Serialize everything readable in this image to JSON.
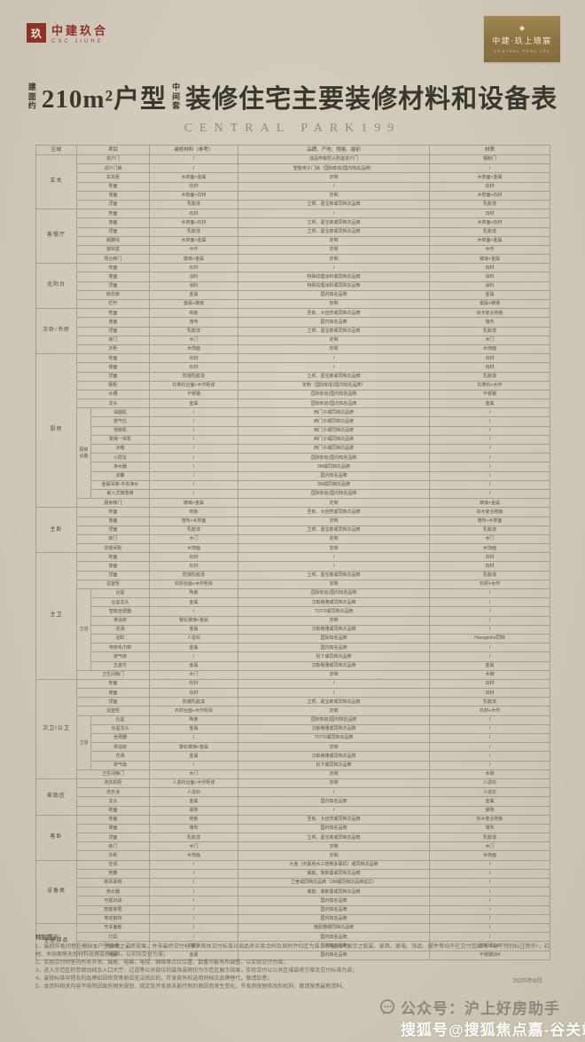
{
  "page": {
    "brand_left": {
      "cn": "中建玖合",
      "en": "CSC JIUHE",
      "seal": "玖"
    },
    "brand_right": {
      "mark": "◆",
      "cn": "中建·玖上琅宸",
      "en": "CENTRAL PARK 199"
    },
    "title": {
      "prefix_small": "建面约",
      "main_left": "210m²户型",
      "mid_small": "中间套",
      "main_right": "装修住宅主要装修材料和设备表"
    },
    "subtitle": "CENTRAL PARK199",
    "date": "2025年8月",
    "watermark_gray": "公众号：沪上好房助手",
    "watermark_white": "搜狐号@搜狐焦点嘉-谷关站"
  },
  "table": {
    "headers": [
      "区域",
      "项目",
      "装修材料（参考）",
      "品牌、产地、规格、级别",
      "材质"
    ],
    "sections": [
      {
        "area": "玄关",
        "rows": [
          {
            "item": "进户门",
            "material": "/",
            "brand": "成品甲级防火防盗进户门",
            "texture": "钢制门"
          },
          {
            "item": "进户门锁",
            "material": "/",
            "brand": "智能电子门锁（国际知名/国内知名品牌）",
            "texture": "/"
          },
          {
            "item": "玄关柜",
            "material": "木饰面+金属",
            "brand": "定制",
            "texture": "木饰面+金属"
          },
          {
            "item": "地面",
            "material": "石材",
            "brand": "/",
            "texture": "石材"
          },
          {
            "item": "墙面",
            "material": "木饰面+石材",
            "brand": "定制",
            "texture": "木饰面+石材"
          },
          {
            "item": "顶面",
            "material": "乳胶漆",
            "brand": "立邦、嘉宝莉或同档次品牌",
            "texture": "乳胶漆"
          }
        ]
      },
      {
        "area": "客餐厅",
        "rows": [
          {
            "item": "地面",
            "material": "石材",
            "brand": "/",
            "texture": "石材"
          },
          {
            "item": "墙面",
            "material": "木饰面+石材",
            "brand": "立邦、嘉宝莉或同档次品牌",
            "texture": "木饰面+石材"
          },
          {
            "item": "顶面",
            "material": "乳胶漆",
            "brand": "立邦、嘉宝莉或同档次品牌",
            "texture": "乳胶漆"
          },
          {
            "item": "踢脚线",
            "material": "木饰面+金属",
            "brand": "定制",
            "texture": "木饰面+金属"
          },
          {
            "item": "窗帘盒",
            "material": "木作",
            "brand": "定制",
            "texture": "木作"
          },
          {
            "item": "阳台移门",
            "material": "玻璃+金属",
            "brand": "定制",
            "texture": "玻璃+金属"
          }
        ]
      },
      {
        "area": "北阳台",
        "rows": [
          {
            "item": "地面",
            "material": "石材",
            "brand": "/",
            "texture": "石材"
          },
          {
            "item": "墙面",
            "material": "涂料",
            "brand": "特殊纹理涂料或同档次品牌",
            "texture": "涂料"
          },
          {
            "item": "顶面",
            "material": "涂料",
            "brand": "特殊纹理涂料或同档次品牌",
            "texture": "涂料"
          },
          {
            "item": "晾衣架",
            "material": "金属",
            "brand": "国内知名品牌",
            "texture": "金属"
          },
          {
            "item": "栏杆",
            "material": "金属+玻璃",
            "brand": "定制",
            "texture": "金属+玻璃"
          }
        ]
      },
      {
        "area": "次卧/书房",
        "rows": [
          {
            "item": "地面",
            "material": "地板",
            "brand": "圣象、大自然或同档次品牌",
            "texture": "实木复合地板"
          },
          {
            "item": "墙面",
            "material": "墙布",
            "brand": "国内知名品牌",
            "texture": "墙布"
          },
          {
            "item": "顶面",
            "material": "乳胶漆",
            "brand": "立邦、嘉宝莉或同档次品牌",
            "texture": "乳胶漆"
          },
          {
            "item": "房门",
            "material": "木门",
            "brand": "定制",
            "texture": "木门"
          },
          {
            "item": "衣柜",
            "material": "木饰面",
            "brand": "定制",
            "texture": "木饰面"
          }
        ]
      },
      {
        "area": "厨房",
        "rows": [
          {
            "item": "地面",
            "material": "石材",
            "brand": "/",
            "texture": "石材"
          },
          {
            "item": "墙面",
            "material": "石材",
            "brand": "/",
            "texture": "石材"
          },
          {
            "item": "顶面",
            "material": "防潮乳胶漆",
            "brand": "立邦、嘉宝莉或同档次品牌",
            "texture": "乳胶漆"
          },
          {
            "item": "橱柜",
            "material": "石英石台面+木作柜体",
            "brand": "定制（国际知名/国内知名品牌）",
            "texture": "石英石+木作"
          },
          {
            "item": "水槽",
            "material": "不锈钢",
            "brand": "国际知名/国内知名品牌",
            "texture": "不锈钢"
          },
          {
            "item": "龙头",
            "material": "金属",
            "brand": "国际知名/国内知名品牌",
            "texture": "金属"
          },
          {
            "group": "厨房设备",
            "item": "油烟机",
            "material": "/",
            "brand": "西门子或同档次品牌",
            "texture": "/"
          },
          {
            "group": "厨房设备",
            "item": "燃气灶",
            "material": "/",
            "brand": "西门子或同档次品牌",
            "texture": "/"
          },
          {
            "group": "厨房设备",
            "item": "洗碗机",
            "material": "/",
            "brand": "西门子或同档次品牌",
            "texture": "/"
          },
          {
            "group": "厨房设备",
            "item": "蒸烤一体机",
            "material": "/",
            "brand": "西门子或同档次品牌",
            "texture": "/"
          },
          {
            "group": "厨房设备",
            "item": "冰箱",
            "material": "/",
            "brand": "西门子或同档次品牌",
            "texture": "/"
          },
          {
            "group": "厨房设备",
            "item": "小厨宝",
            "material": "/",
            "brand": "国际知名/国内知名品牌",
            "texture": "/"
          },
          {
            "group": "厨房设备",
            "item": "净水器",
            "material": "/",
            "brand": "3M或同档次品牌",
            "texture": "/"
          },
          {
            "group": "厨房设备",
            "item": "凉霸",
            "material": "/",
            "brand": "国内知名品牌",
            "texture": "/"
          },
          {
            "group": "厨房设备",
            "item": "金属吊架·中央净水",
            "material": "/",
            "brand": "3M或同档次品牌",
            "texture": "/"
          },
          {
            "group": "厨房设备",
            "item": "嵌入式微蒸烤",
            "material": "/",
            "brand": "国际知名/国内知名品牌",
            "texture": "/"
          },
          {
            "item": "厨房移门",
            "material": "玻璃+金属",
            "brand": "定制",
            "texture": "玻璃+金属"
          }
        ]
      },
      {
        "area": "主卧",
        "rows": [
          {
            "item": "地面",
            "material": "地板",
            "brand": "圣象、大自然或同档次品牌",
            "texture": "实木复合地板"
          },
          {
            "item": "墙面",
            "material": "墙布+木饰面",
            "brand": "定制",
            "texture": "墙布+木饰面"
          },
          {
            "item": "顶面",
            "material": "乳胶漆",
            "brand": "立邦、嘉宝莉或同档次品牌",
            "texture": "乳胶漆"
          },
          {
            "item": "房门",
            "material": "木门",
            "brand": "定制",
            "texture": "木门"
          },
          {
            "item": "衣帽间柜",
            "material": "木饰面",
            "brand": "定制",
            "texture": "木饰面"
          }
        ]
      },
      {
        "area": "主卫",
        "rows": [
          {
            "item": "地面",
            "material": "石材",
            "brand": "/",
            "texture": "石材"
          },
          {
            "item": "墙面",
            "material": "石材",
            "brand": "/",
            "texture": "石材"
          },
          {
            "item": "顶面",
            "material": "防潮乳胶漆",
            "brand": "立邦、嘉宝莉或同档次品牌",
            "texture": "乳胶漆"
          },
          {
            "item": "浴室柜",
            "material": "石材台面+木作柜体",
            "brand": "定制",
            "texture": "石材+木作"
          },
          {
            "group": "卫浴",
            "item": "台盆",
            "material": "陶瓷",
            "brand": "国际知名/国内知名品牌",
            "texture": "/"
          },
          {
            "group": "卫浴",
            "item": "台盆龙头",
            "material": "金属",
            "brand": "汉斯格雅或同档次品牌",
            "texture": "/"
          },
          {
            "group": "卫浴",
            "item": "智能坐便器",
            "material": "/",
            "brand": "TOTO或同档次品牌",
            "texture": "/"
          },
          {
            "group": "卫浴",
            "item": "淋浴房",
            "material": "钢化玻璃+金属",
            "brand": "定制",
            "texture": "/"
          },
          {
            "group": "卫浴",
            "item": "花洒",
            "material": "金属",
            "brand": "汉斯格雅或同档次品牌",
            "texture": "/"
          },
          {
            "group": "卫浴",
            "item": "浴缸",
            "material": "人造石",
            "brand": "国际知名品牌",
            "texture": "Hansgrohe同档"
          },
          {
            "group": "卫浴",
            "item": "电热毛巾架",
            "material": "金属",
            "brand": "国内知名品牌",
            "texture": "/"
          },
          {
            "group": "卫浴",
            "item": "排气扇",
            "material": "/",
            "brand": "松下或同档次品牌",
            "texture": "/"
          },
          {
            "group": "卫浴",
            "item": "五金件",
            "material": "金属",
            "brand": "汉斯格雅或同档次品牌",
            "texture": "金属"
          },
          {
            "item": "卫生间移门",
            "material": "木门",
            "brand": "定制",
            "texture": "木制"
          }
        ]
      },
      {
        "area": "次卫/公卫",
        "rows": [
          {
            "item": "地面",
            "material": "石材",
            "brand": "/",
            "texture": "石材"
          },
          {
            "item": "墙面",
            "material": "石材",
            "brand": "/",
            "texture": "石材"
          },
          {
            "item": "顶面",
            "material": "防潮乳胶漆",
            "brand": "立邦、嘉宝莉或同档次品牌",
            "texture": "乳胶漆"
          },
          {
            "item": "浴室柜",
            "material": "石材台面+木作柜体",
            "brand": "定制",
            "texture": "石材+木作"
          },
          {
            "group": "卫浴",
            "item": "台盆",
            "material": "陶瓷",
            "brand": "国际知名/国内知名品牌",
            "texture": "/"
          },
          {
            "group": "卫浴",
            "item": "台盆龙头",
            "material": "金属",
            "brand": "汉斯格雅或同档次品牌",
            "texture": "/"
          },
          {
            "group": "卫浴",
            "item": "坐便器",
            "material": "/",
            "brand": "TOTO或同档次品牌",
            "texture": "/"
          },
          {
            "group": "卫浴",
            "item": "淋浴房",
            "material": "钢化玻璃+金属",
            "brand": "定制",
            "texture": "/"
          },
          {
            "group": "卫浴",
            "item": "花洒",
            "material": "金属",
            "brand": "汉斯格雅或同档次品牌",
            "texture": "/"
          },
          {
            "group": "卫浴",
            "item": "排气扇",
            "material": "/",
            "brand": "松下或同档次品牌",
            "texture": "/"
          },
          {
            "item": "卫生间移门",
            "material": "木门",
            "brand": "定制",
            "texture": "木制"
          }
        ]
      },
      {
        "area": "家政区",
        "rows": [
          {
            "item": "洗衣机柜",
            "material": "人造石台面+木作柜体",
            "brand": "定制",
            "texture": "人造石"
          },
          {
            "item": "洗衣池",
            "material": "人造石",
            "brand": "/",
            "texture": "人造石"
          },
          {
            "item": "龙头",
            "material": "金属",
            "brand": "国内知名品牌",
            "texture": "金属"
          },
          {
            "item": "地面",
            "material": "瓷砖",
            "brand": "/",
            "texture": "瓷砖"
          }
        ]
      },
      {
        "area": "客卧",
        "rows": [
          {
            "item": "地面",
            "material": "地板",
            "brand": "圣象、大自然或同档次品牌",
            "texture": "实木复合地板"
          },
          {
            "item": "墙面",
            "material": "墙布",
            "brand": "国内知名品牌",
            "texture": "墙布"
          },
          {
            "item": "顶面",
            "material": "乳胶漆",
            "brand": "立邦、嘉宝莉或同档次品牌",
            "texture": "乳胶漆"
          },
          {
            "item": "房门",
            "material": "木门",
            "brand": "定制",
            "texture": "木门"
          },
          {
            "item": "衣柜",
            "material": "木饰面",
            "brand": "定制",
            "texture": "木饰面"
          }
        ]
      },
      {
        "area": "设备类",
        "rows": [
          {
            "item": "空调",
            "material": "/",
            "brand": "大金（天氟地水三管制多联机）或同档次品牌",
            "texture": "/"
          },
          {
            "item": "地暖",
            "material": "/",
            "brand": "威能、菲斯曼或同档次品牌",
            "texture": "/"
          },
          {
            "item": "新风系统",
            "material": "/",
            "brand": "兰舍或同档次品牌（3M或同档次品牌滤芯）",
            "texture": "/"
          },
          {
            "item": "热水器",
            "material": "/",
            "brand": "威能、菲斯曼或同档次品牌",
            "texture": "/"
          },
          {
            "item": "可视对讲",
            "material": "/",
            "brand": "国内知名品牌",
            "texture": "/"
          },
          {
            "item": "智能家居",
            "material": "/",
            "brand": "国内知名品牌",
            "texture": "/"
          },
          {
            "item": "电动窗帘",
            "material": "/",
            "brand": "国内知名品牌",
            "texture": "/"
          }
        ]
      },
      {
        "area": "全屋部品",
        "rows": [
          {
            "item": "开关面板",
            "material": "/",
            "brand": "施耐德或同档次品牌",
            "texture": "/"
          },
          {
            "item": "灯具",
            "material": "/",
            "brand": "国内知名品牌",
            "texture": "/"
          },
          {
            "item": "给水管",
            "material": "不锈钢",
            "brand": "国内知名品牌",
            "texture": "不锈钢304"
          },
          {
            "item": "地漏",
            "material": "金属",
            "brand": "国内知名品牌",
            "texture": "不锈钢304"
          }
        ]
      }
    ]
  },
  "notes": {
    "title": "特别提示：",
    "lines": [
      "1、装修样板间意在模拟本户型装修之最终效果，并非最终交付标准，具体交付标准以商品房买卖合同及其附件约定为准；样板间内展示之软装、家具、家电、饰品、摆件等均不在交付范围内（以下特别标注除外），石材、木饰面等天然材料纹理或有差异，以实际交付为准；",
      "2、实际交付时室内所有开关、插座、电箱、电视、网络等点位位置、数量可能有所调整，以实际交付为准；",
      "3、进入示范区的参观动线及入口大厅、过道等公共部位的装饰装修仅为示范区展示效果，实际交付以公共区域装修方案及交付标准为准；",
      "4、装修标准中提及的品牌如因供货等原因无法供应的，开发商有权选用同档次品牌替代，敬请知悉；",
      "5、本资料相关内容不排除因政府相关规划、规定及开发商未能控制的原因而发生变化，开发商保留修改的权利，敬请留意最新资料。"
    ]
  }
}
